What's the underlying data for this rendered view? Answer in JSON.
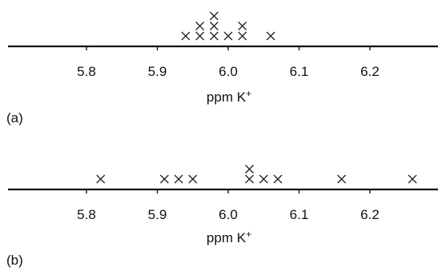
{
  "chart_data": [
    {
      "type": "scatter",
      "panel_label": "(a)",
      "xlabel": "ppm K",
      "xlabel_sup": "+",
      "xlim": [
        5.7,
        6.3
      ],
      "ticks": [
        5.8,
        5.9,
        6.0,
        6.1,
        6.2
      ],
      "tick_labels": [
        "5.8",
        "5.9",
        "6.0",
        "6.1",
        "6.2"
      ],
      "marker": "x",
      "values": [
        5.94,
        5.96,
        5.96,
        5.98,
        5.98,
        5.98,
        6.0,
        6.02,
        6.02,
        6.06
      ]
    },
    {
      "type": "scatter",
      "panel_label": "(b)",
      "xlabel": "ppm K",
      "xlabel_sup": "+",
      "xlim": [
        5.7,
        6.3
      ],
      "ticks": [
        5.8,
        5.9,
        6.0,
        6.1,
        6.2
      ],
      "tick_labels": [
        "5.8",
        "5.9",
        "6.0",
        "6.1",
        "6.2"
      ],
      "marker": "x",
      "values": [
        5.82,
        5.91,
        5.93,
        5.95,
        6.03,
        6.03,
        6.05,
        6.07,
        6.16,
        6.26
      ]
    }
  ]
}
